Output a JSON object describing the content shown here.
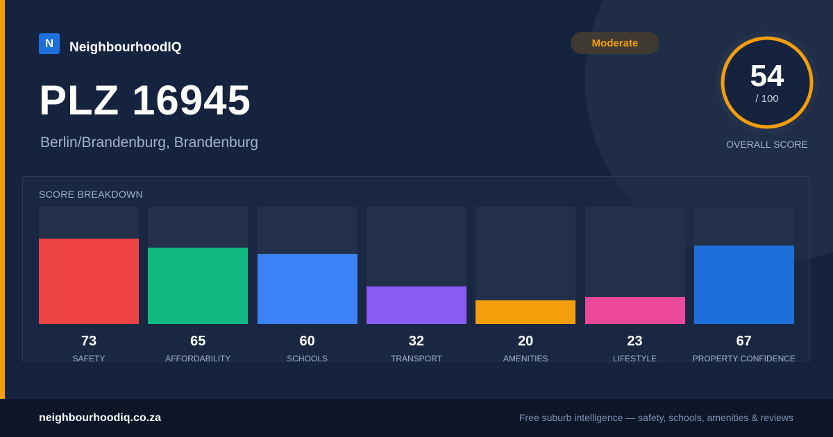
{
  "brand": {
    "logo_letter": "N",
    "name": "NeighbourhoodIQ"
  },
  "location": {
    "title": "PLZ 16945",
    "subtitle": "Berlin/Brandenburg, Brandenburg"
  },
  "rating": {
    "label": "Moderate"
  },
  "overall": {
    "value": "54",
    "max_label": "/ 100",
    "caption": "OVERALL SCORE",
    "fraction": 0.54
  },
  "colors": {
    "accent": "#f59e0b",
    "background": "#15233f",
    "footer": "#0d1628"
  },
  "breakdown": {
    "title": "SCORE BREAKDOWN",
    "max": 100,
    "items": [
      {
        "label": "SAFETY",
        "value": 73,
        "color": "#ef4444"
      },
      {
        "label": "AFFORDABILITY",
        "value": 65,
        "color": "#10b981"
      },
      {
        "label": "SCHOOLS",
        "value": 60,
        "color": "#3b82f6"
      },
      {
        "label": "TRANSPORT",
        "value": 32,
        "color": "#8b5cf6"
      },
      {
        "label": "AMENITIES",
        "value": 20,
        "color": "#f59e0b"
      },
      {
        "label": "LIFESTYLE",
        "value": 23,
        "color": "#ec4899"
      },
      {
        "label": "PROPERTY CONFIDENCE",
        "value": 67,
        "color": "#1d6fdb"
      }
    ]
  },
  "footer": {
    "url": "neighbourhoodiq.co.za",
    "tagline": "Free suburb intelligence — safety, schools, amenities & reviews"
  }
}
